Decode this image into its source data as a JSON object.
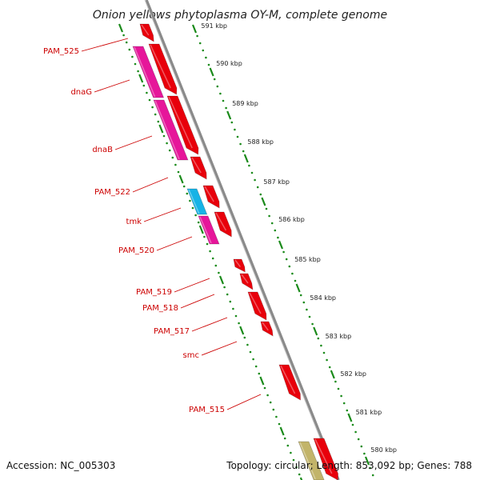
{
  "title": "Onion yellows phytoplasma OY-M, complete genome",
  "accession": "Accession: NC_005303",
  "topology": "Topology: circular; Length: 853,092 bp; Genes: 788",
  "colors": {
    "forward_gene": "#e8000b",
    "reverse_gene": "#e6169a",
    "reverse_gene_alt": "#17b3e6",
    "other_gene": "#c2b46a",
    "backbone": "#8a8a8a",
    "tick": "#1a8a1a",
    "label": "#cc0000"
  },
  "gene_labels": [
    "PAM_525",
    "dnaG",
    "dnaB",
    "PAM_522",
    "tmk",
    "PAM_520",
    "PAM_519",
    "PAM_518",
    "PAM_517",
    "smc",
    "PAM_515"
  ],
  "kbp_labels": [
    "591 kbp",
    "590 kbp",
    "589 kbp",
    "588 kbp",
    "587 kbp",
    "586 kbp",
    "585 kbp",
    "584 kbp",
    "583 kbp",
    "582 kbp",
    "581 kbp",
    "580 kbp"
  ]
}
